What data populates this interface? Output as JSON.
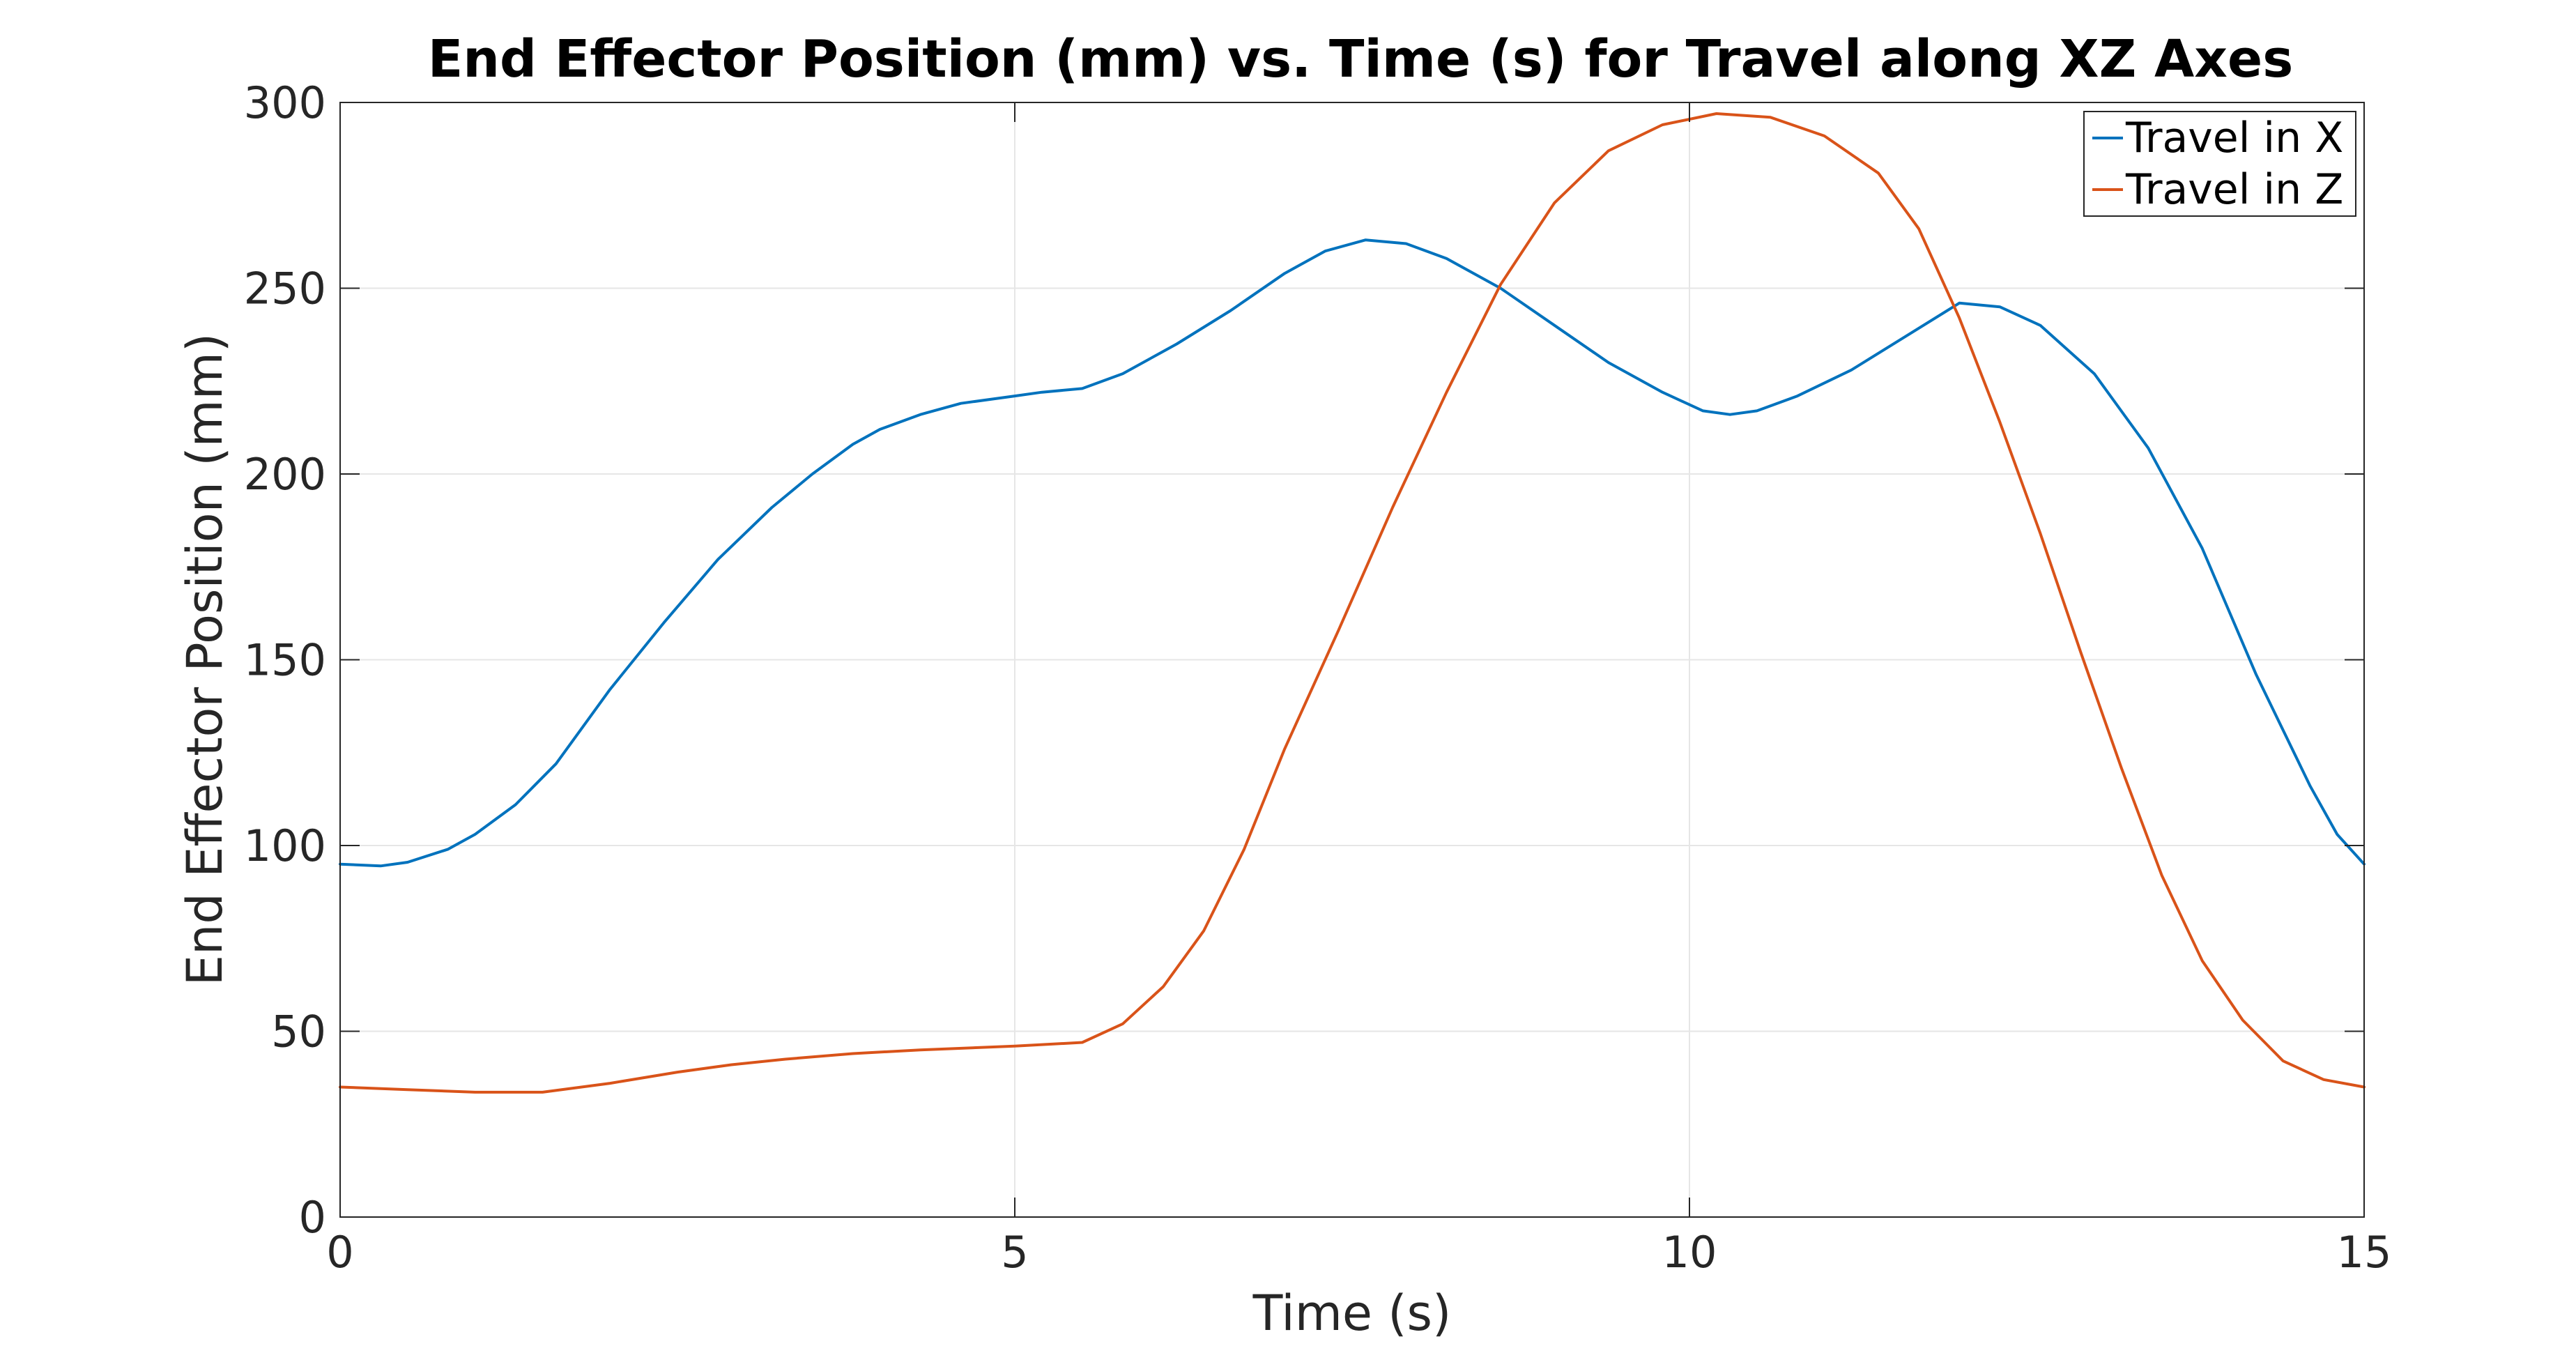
{
  "chart_data": {
    "type": "line",
    "title": "End Effector Position (mm) vs. Time (s) for Travel along XZ Axes",
    "xlabel": "Time (s)",
    "ylabel": "End Effector Position (mm)",
    "xlim": [
      0,
      15
    ],
    "ylim": [
      0,
      300
    ],
    "xticks": [
      "0",
      "5",
      "10",
      "15"
    ],
    "yticks": [
      "0",
      "50",
      "100",
      "150",
      "200",
      "250",
      "300"
    ],
    "grid": true,
    "legend_position": "top-right",
    "series": [
      {
        "name": "Travel in X",
        "color": "#0072BD",
        "points": [
          [
            0.0,
            95
          ],
          [
            0.3,
            94.5
          ],
          [
            0.5,
            95.5
          ],
          [
            0.8,
            99
          ],
          [
            1.0,
            103
          ],
          [
            1.3,
            111
          ],
          [
            1.6,
            122
          ],
          [
            2.0,
            142
          ],
          [
            2.4,
            160
          ],
          [
            2.8,
            177
          ],
          [
            3.0,
            184
          ],
          [
            3.2,
            191
          ],
          [
            3.5,
            200
          ],
          [
            3.8,
            208
          ],
          [
            4.0,
            212
          ],
          [
            4.3,
            216
          ],
          [
            4.6,
            219
          ],
          [
            5.0,
            221
          ],
          [
            5.2,
            222
          ],
          [
            5.5,
            223
          ],
          [
            5.8,
            227
          ],
          [
            6.2,
            235
          ],
          [
            6.6,
            244
          ],
          [
            7.0,
            254
          ],
          [
            7.3,
            260
          ],
          [
            7.6,
            263
          ],
          [
            7.9,
            262
          ],
          [
            8.2,
            258
          ],
          [
            8.6,
            250
          ],
          [
            9.0,
            240
          ],
          [
            9.4,
            230
          ],
          [
            9.8,
            222
          ],
          [
            10.1,
            217
          ],
          [
            10.3,
            216
          ],
          [
            10.5,
            217
          ],
          [
            10.8,
            221
          ],
          [
            11.2,
            228
          ],
          [
            11.6,
            237
          ],
          [
            12.0,
            246
          ],
          [
            12.3,
            245
          ],
          [
            12.6,
            240
          ],
          [
            13.0,
            227
          ],
          [
            13.4,
            207
          ],
          [
            13.8,
            180
          ],
          [
            14.2,
            146
          ],
          [
            14.6,
            116
          ],
          [
            14.8,
            103
          ],
          [
            15.0,
            95
          ]
        ]
      },
      {
        "name": "Travel in Z",
        "color": "#D95319",
        "points": [
          [
            0.0,
            35
          ],
          [
            0.5,
            34.3
          ],
          [
            1.0,
            33.6
          ],
          [
            1.5,
            33.6
          ],
          [
            2.0,
            36
          ],
          [
            2.5,
            39
          ],
          [
            2.9,
            41
          ],
          [
            3.3,
            42.5
          ],
          [
            3.8,
            44
          ],
          [
            4.3,
            45
          ],
          [
            5.0,
            46
          ],
          [
            5.5,
            47
          ],
          [
            5.8,
            52
          ],
          [
            6.1,
            62
          ],
          [
            6.4,
            77
          ],
          [
            6.7,
            99
          ],
          [
            7.0,
            126
          ],
          [
            7.4,
            158
          ],
          [
            7.8,
            191
          ],
          [
            8.2,
            222
          ],
          [
            8.6,
            251
          ],
          [
            9.0,
            273
          ],
          [
            9.4,
            287
          ],
          [
            9.8,
            294
          ],
          [
            10.2,
            297
          ],
          [
            10.6,
            296
          ],
          [
            11.0,
            291
          ],
          [
            11.4,
            281
          ],
          [
            11.7,
            266
          ],
          [
            12.0,
            242
          ],
          [
            12.3,
            214
          ],
          [
            12.6,
            184
          ],
          [
            12.9,
            152
          ],
          [
            13.2,
            121
          ],
          [
            13.5,
            92
          ],
          [
            13.8,
            69
          ],
          [
            14.1,
            53
          ],
          [
            14.4,
            42
          ],
          [
            14.7,
            37
          ],
          [
            15.0,
            35
          ]
        ]
      }
    ]
  }
}
